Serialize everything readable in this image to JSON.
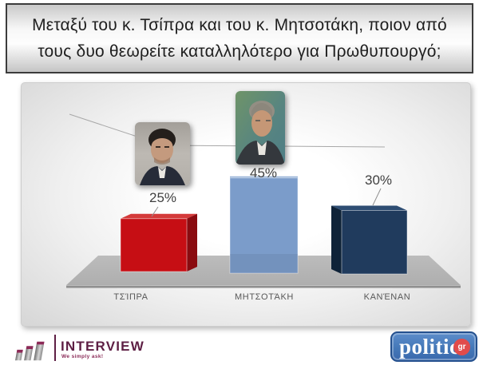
{
  "title": {
    "line1": "Μεταξύ του κ. Τσίπρα και του κ. Μητσοτάκη, ποιον από",
    "line2": "τους δυο θεωρείτε καταλληλότερο για Πρωθυπουργό;"
  },
  "chart_data": {
    "type": "bar",
    "style": "3d-column",
    "title": "",
    "categories": [
      "ΤΣΊΠΡΑ",
      "ΜΗΤΣΟΤΆΚΗ",
      "ΚΑΝΈΝΑΝ"
    ],
    "values": [
      25,
      45,
      30
    ],
    "data_labels": [
      "25%",
      "45%",
      "30%"
    ],
    "legend": "none",
    "grid": false,
    "colors": [
      {
        "front": "#c60e14",
        "side": "#8a0b10",
        "top": "#d43a3a"
      },
      {
        "front": "#7b9cca",
        "side": "#5f83b4",
        "top": "#9ab5d8"
      },
      {
        "front": "#203b5d",
        "side": "#0e2238",
        "top": "#2e4d73"
      }
    ],
    "floor_color": "#b4b4b4",
    "floor_edge_color": "#8f8f8f"
  },
  "footer": {
    "interview": {
      "name": "INTERVIEW",
      "tagline": "We simply ask!"
    },
    "politic": {
      "name": "politic",
      "suffix": "gr"
    }
  }
}
